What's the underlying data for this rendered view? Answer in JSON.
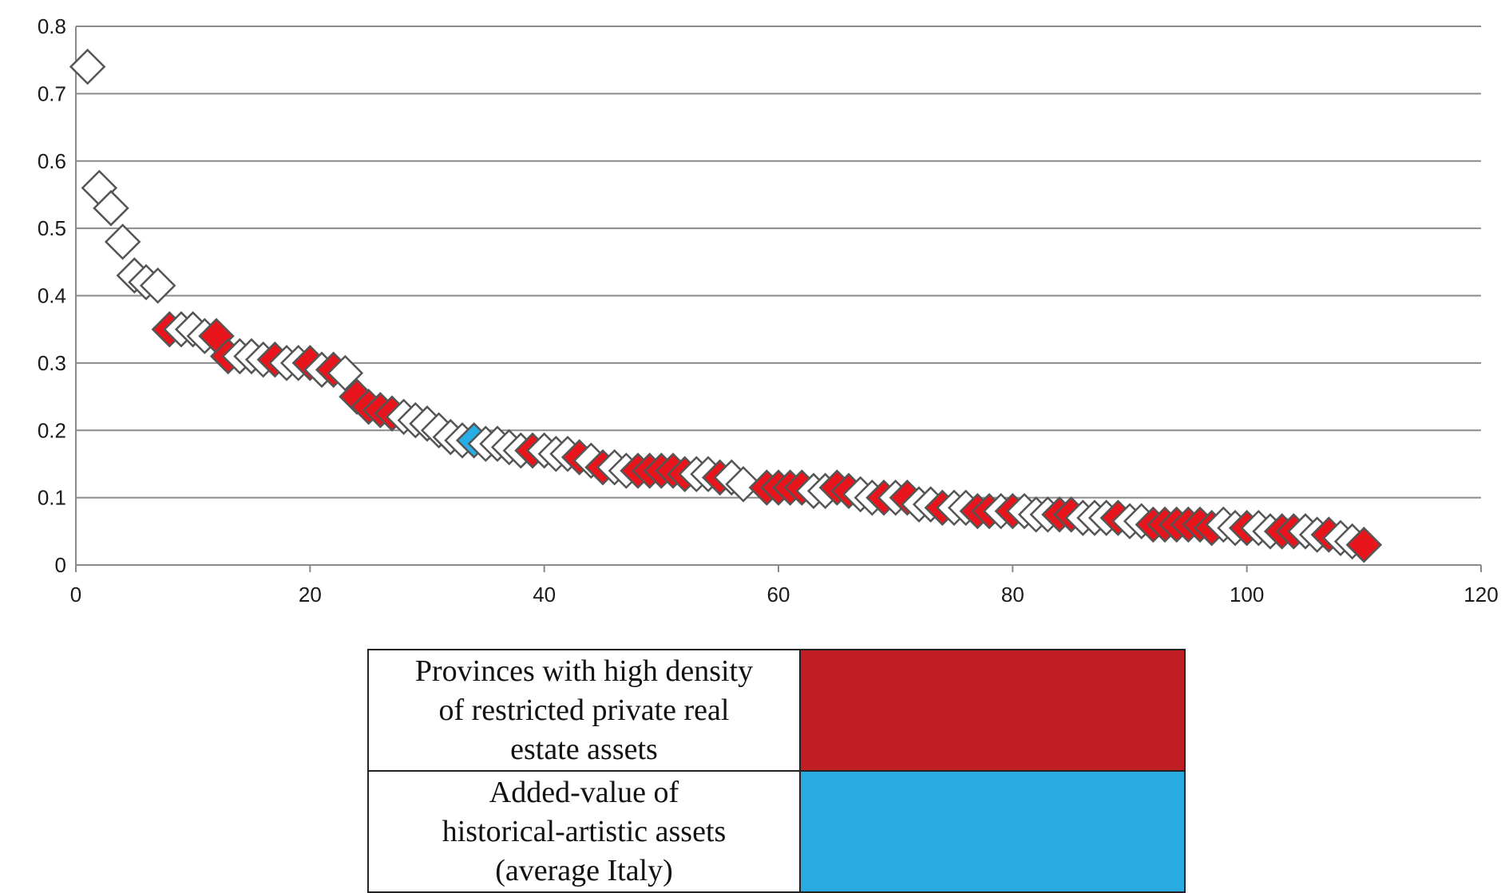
{
  "chart_data": {
    "type": "scatter",
    "title": "",
    "xlabel": "",
    "ylabel": "",
    "xlim": [
      0,
      120
    ],
    "ylim": [
      0,
      0.8
    ],
    "x_ticks": [
      "0",
      "20",
      "40",
      "60",
      "80",
      "100",
      "120"
    ],
    "y_ticks": [
      "0",
      "0.1",
      "0.2",
      "0.3",
      "0.4",
      "0.5",
      "0.6",
      "0.7",
      "0.8"
    ],
    "grid": "horizontal",
    "colors": {
      "white_marker": "#ffffff",
      "red_marker": "#e8161c",
      "blue_marker": "#27aee6",
      "marker_edge": "#555555",
      "grid": "#8a8a8a",
      "legend_red": "#bf1e24",
      "legend_blue": "#29abe2"
    },
    "series": [
      {
        "name": "Provinces",
        "color": "#ffffff",
        "points": [
          [
            1,
            0.74
          ],
          [
            2,
            0.56
          ],
          [
            3,
            0.53
          ],
          [
            4,
            0.48
          ],
          [
            5,
            0.43
          ],
          [
            6,
            0.42
          ],
          [
            7,
            0.415
          ],
          [
            9,
            0.35
          ],
          [
            10,
            0.35
          ],
          [
            11,
            0.34
          ],
          [
            14,
            0.31
          ],
          [
            15,
            0.31
          ],
          [
            16,
            0.305
          ],
          [
            18,
            0.3
          ],
          [
            19,
            0.3
          ],
          [
            21,
            0.29
          ],
          [
            23,
            0.285
          ],
          [
            28,
            0.22
          ],
          [
            29,
            0.215
          ],
          [
            30,
            0.21
          ],
          [
            31,
            0.2
          ],
          [
            32,
            0.19
          ],
          [
            33,
            0.185
          ],
          [
            35,
            0.18
          ],
          [
            36,
            0.18
          ],
          [
            37,
            0.175
          ],
          [
            38,
            0.17
          ],
          [
            40,
            0.17
          ],
          [
            41,
            0.165
          ],
          [
            42,
            0.165
          ],
          [
            44,
            0.155
          ],
          [
            46,
            0.145
          ],
          [
            47,
            0.14
          ],
          [
            53,
            0.135
          ],
          [
            54,
            0.135
          ],
          [
            56,
            0.13
          ],
          [
            57,
            0.12
          ],
          [
            63,
            0.11
          ],
          [
            64,
            0.11
          ],
          [
            67,
            0.105
          ],
          [
            68,
            0.1
          ],
          [
            70,
            0.1
          ],
          [
            72,
            0.09
          ],
          [
            73,
            0.09
          ],
          [
            75,
            0.085
          ],
          [
            76,
            0.085
          ],
          [
            79,
            0.08
          ],
          [
            81,
            0.08
          ],
          [
            82,
            0.075
          ],
          [
            83,
            0.075
          ],
          [
            86,
            0.07
          ],
          [
            87,
            0.07
          ],
          [
            88,
            0.07
          ],
          [
            90,
            0.065
          ],
          [
            91,
            0.065
          ],
          [
            98,
            0.06
          ],
          [
            99,
            0.055
          ],
          [
            101,
            0.055
          ],
          [
            102,
            0.05
          ],
          [
            105,
            0.05
          ],
          [
            106,
            0.045
          ],
          [
            108,
            0.04
          ],
          [
            109,
            0.035
          ]
        ]
      },
      {
        "name": "Provinces with high density of restricted private real estate assets",
        "color": "#e8161c",
        "points": [
          [
            8,
            0.35
          ],
          [
            12,
            0.34
          ],
          [
            13,
            0.31
          ],
          [
            17,
            0.305
          ],
          [
            20,
            0.3
          ],
          [
            22,
            0.29
          ],
          [
            24,
            0.25
          ],
          [
            25,
            0.235
          ],
          [
            26,
            0.23
          ],
          [
            27,
            0.225
          ],
          [
            39,
            0.17
          ],
          [
            43,
            0.16
          ],
          [
            45,
            0.145
          ],
          [
            48,
            0.14
          ],
          [
            49,
            0.14
          ],
          [
            50,
            0.14
          ],
          [
            51,
            0.14
          ],
          [
            52,
            0.135
          ],
          [
            55,
            0.13
          ],
          [
            59,
            0.115
          ],
          [
            60,
            0.115
          ],
          [
            61,
            0.115
          ],
          [
            62,
            0.115
          ],
          [
            65,
            0.115
          ],
          [
            66,
            0.11
          ],
          [
            69,
            0.1
          ],
          [
            71,
            0.1
          ],
          [
            74,
            0.085
          ],
          [
            77,
            0.08
          ],
          [
            78,
            0.08
          ],
          [
            80,
            0.08
          ],
          [
            84,
            0.075
          ],
          [
            85,
            0.075
          ],
          [
            89,
            0.07
          ],
          [
            92,
            0.06
          ],
          [
            93,
            0.06
          ],
          [
            94,
            0.06
          ],
          [
            95,
            0.06
          ],
          [
            96,
            0.06
          ],
          [
            97,
            0.055
          ],
          [
            100,
            0.055
          ],
          [
            103,
            0.05
          ],
          [
            104,
            0.05
          ],
          [
            107,
            0.045
          ],
          [
            110,
            0.03
          ]
        ]
      },
      {
        "name": "Added-value of historical-artistic assets (average Italy)",
        "color": "#27aee6",
        "points": [
          [
            34,
            0.185
          ]
        ]
      }
    ]
  },
  "legend": {
    "items": [
      {
        "label": "Provinces with high density\nof restricted private real\nestate assets",
        "color": "#bf1e24"
      },
      {
        "label": "Added-value of\nhistorical-artistic assets\n(average Italy)",
        "color": "#29abe2"
      }
    ]
  }
}
